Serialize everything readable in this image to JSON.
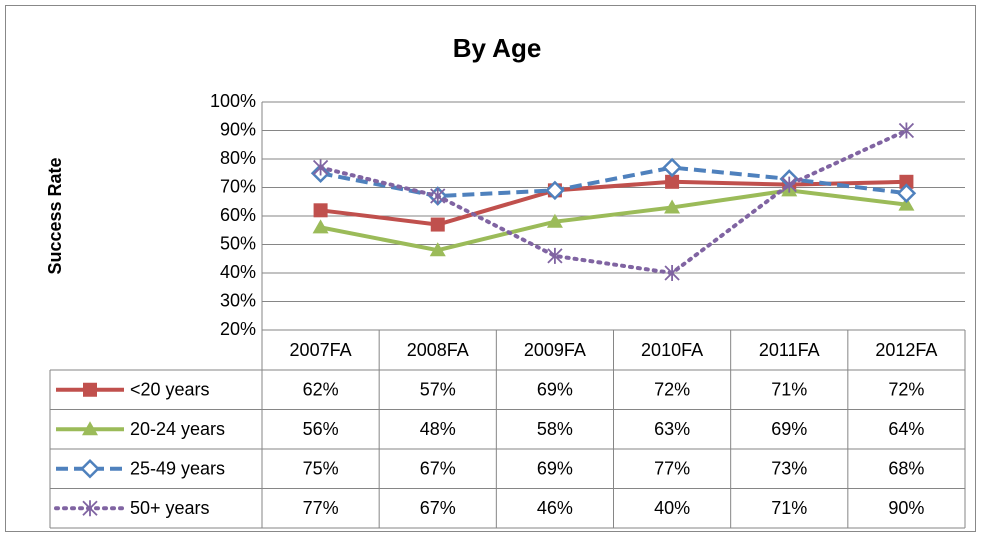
{
  "chart_data": {
    "type": "line",
    "title": "By Age",
    "y_label": "Success Rate",
    "categories": [
      "2007FA",
      "2008FA",
      "2009FA",
      "2010FA",
      "2011FA",
      "2012FA"
    ],
    "ylim": [
      20,
      100
    ],
    "yticks": [
      {
        "value": 20,
        "label": "20%"
      },
      {
        "value": 30,
        "label": "30%"
      },
      {
        "value": 40,
        "label": "40%"
      },
      {
        "value": 50,
        "label": "50%"
      },
      {
        "value": 60,
        "label": "60%"
      },
      {
        "value": 70,
        "label": "70%"
      },
      {
        "value": 80,
        "label": "80%"
      },
      {
        "value": 90,
        "label": "90%"
      },
      {
        "value": 100,
        "label": "100%"
      }
    ],
    "grid": true,
    "series": [
      {
        "name": "<20 years",
        "color": "#c0504d",
        "marker": "square",
        "dash": "solid",
        "values": [
          62,
          57,
          69,
          72,
          71,
          72
        ],
        "value_labels": [
          "62%",
          "57%",
          "69%",
          "72%",
          "71%",
          "72%"
        ]
      },
      {
        "name": "20-24 years",
        "color": "#9bbb59",
        "marker": "triangle",
        "dash": "solid",
        "values": [
          56,
          48,
          58,
          63,
          69,
          64
        ],
        "value_labels": [
          "56%",
          "48%",
          "58%",
          "63%",
          "69%",
          "64%"
        ]
      },
      {
        "name": "25-49 years",
        "color": "#4f81bd",
        "marker": "diamond",
        "dash": "dashed",
        "values": [
          75,
          67,
          69,
          77,
          73,
          68
        ],
        "value_labels": [
          "75%",
          "67%",
          "69%",
          "77%",
          "73%",
          "68%"
        ]
      },
      {
        "name": "50+ years",
        "color": "#8064a2",
        "marker": "star",
        "dash": "dotted",
        "values": [
          77,
          67,
          46,
          40,
          71,
          90
        ],
        "value_labels": [
          "77%",
          "67%",
          "46%",
          "40%",
          "71%",
          "90%"
        ]
      }
    ]
  }
}
